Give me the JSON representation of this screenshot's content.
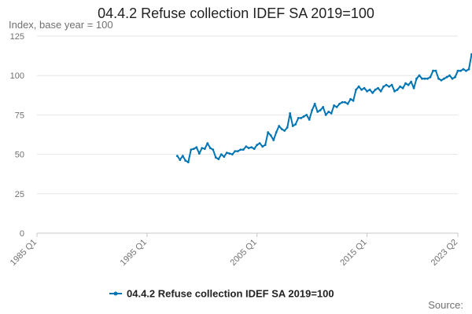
{
  "chart_data": {
    "type": "line",
    "title": "04.4.2 Refuse collection IDEF SA 2019=100",
    "ylabel": "Index, base year = 100",
    "xlabel": "",
    "ylim": [
      0,
      125
    ],
    "yticks": [
      0,
      25,
      50,
      75,
      100,
      125
    ],
    "x_ticks": [
      "1985 Q1",
      "1995 Q1",
      "2005 Q1",
      "2015 Q1",
      "2023 Q2"
    ],
    "legend_position": "bottom",
    "grid": true,
    "color": "#0075b4",
    "series": [
      {
        "name": "04.4.2 Refuse collection IDEF SA 2019=100",
        "points": [
          [
            "1997 Q4",
            49
          ],
          [
            "1998 Q1",
            46.5
          ],
          [
            "1998 Q2",
            49
          ],
          [
            "1998 Q3",
            46
          ],
          [
            "1998 Q4",
            45
          ],
          [
            "1999 Q1",
            53
          ],
          [
            "1999 Q2",
            53.5
          ],
          [
            "1999 Q3",
            54.5
          ],
          [
            "1999 Q4",
            50.5
          ],
          [
            "2000 Q1",
            54
          ],
          [
            "2000 Q2",
            53.5
          ],
          [
            "2000 Q3",
            57
          ],
          [
            "2000 Q4",
            54
          ],
          [
            "2001 Q1",
            53
          ],
          [
            "2001 Q2",
            48
          ],
          [
            "2001 Q3",
            47
          ],
          [
            "2001 Q4",
            50
          ],
          [
            "2002 Q1",
            48.5
          ],
          [
            "2002 Q2",
            51
          ],
          [
            "2002 Q3",
            50.5
          ],
          [
            "2002 Q4",
            50
          ],
          [
            "2003 Q1",
            52
          ],
          [
            "2003 Q2",
            52
          ],
          [
            "2003 Q3",
            53
          ],
          [
            "2003 Q4",
            53
          ],
          [
            "2004 Q1",
            55
          ],
          [
            "2004 Q2",
            54
          ],
          [
            "2004 Q3",
            54.5
          ],
          [
            "2004 Q4",
            53.5
          ],
          [
            "2005 Q1",
            56
          ],
          [
            "2005 Q2",
            57
          ],
          [
            "2005 Q3",
            55
          ],
          [
            "2005 Q4",
            56
          ],
          [
            "2006 Q1",
            64
          ],
          [
            "2006 Q2",
            62
          ],
          [
            "2006 Q3",
            59
          ],
          [
            "2006 Q4",
            64
          ],
          [
            "2007 Q1",
            68
          ],
          [
            "2007 Q2",
            66
          ],
          [
            "2007 Q3",
            65
          ],
          [
            "2007 Q4",
            67
          ],
          [
            "2008 Q1",
            76
          ],
          [
            "2008 Q2",
            68
          ],
          [
            "2008 Q3",
            69
          ],
          [
            "2008 Q4",
            73
          ],
          [
            "2009 Q1",
            73
          ],
          [
            "2009 Q2",
            74
          ],
          [
            "2009 Q3",
            75
          ],
          [
            "2009 Q4",
            72
          ],
          [
            "2010 Q1",
            78
          ],
          [
            "2010 Q2",
            82
          ],
          [
            "2010 Q3",
            77
          ],
          [
            "2010 Q4",
            78
          ],
          [
            "2011 Q1",
            80
          ],
          [
            "2011 Q2",
            75
          ],
          [
            "2011 Q3",
            77
          ],
          [
            "2011 Q4",
            76
          ],
          [
            "2012 Q1",
            81
          ],
          [
            "2012 Q2",
            80
          ],
          [
            "2012 Q3",
            82
          ],
          [
            "2012 Q4",
            83
          ],
          [
            "2013 Q1",
            83
          ],
          [
            "2013 Q2",
            82
          ],
          [
            "2013 Q3",
            85
          ],
          [
            "2013 Q4",
            84
          ],
          [
            "2014 Q1",
            91
          ],
          [
            "2014 Q2",
            93
          ],
          [
            "2014 Q3",
            91
          ],
          [
            "2014 Q4",
            92
          ],
          [
            "2015 Q1",
            90
          ],
          [
            "2015 Q2",
            91
          ],
          [
            "2015 Q3",
            89
          ],
          [
            "2015 Q4",
            91
          ],
          [
            "2016 Q1",
            92
          ],
          [
            "2016 Q2",
            90
          ],
          [
            "2016 Q3",
            93
          ],
          [
            "2016 Q4",
            94
          ],
          [
            "2017 Q1",
            93
          ],
          [
            "2017 Q2",
            94
          ],
          [
            "2017 Q3",
            90
          ],
          [
            "2017 Q4",
            91
          ],
          [
            "2018 Q1",
            93
          ],
          [
            "2018 Q2",
            92
          ],
          [
            "2018 Q3",
            95
          ],
          [
            "2018 Q4",
            94
          ],
          [
            "2019 Q1",
            96
          ],
          [
            "2019 Q2",
            92
          ],
          [
            "2019 Q3",
            98
          ],
          [
            "2019 Q4",
            100
          ],
          [
            "2020 Q1",
            98
          ],
          [
            "2020 Q2",
            98
          ],
          [
            "2020 Q3",
            98
          ],
          [
            "2020 Q4",
            99
          ],
          [
            "2021 Q1",
            103
          ],
          [
            "2021 Q2",
            103
          ],
          [
            "2021 Q3",
            98
          ],
          [
            "2021 Q4",
            97
          ],
          [
            "2022 Q1",
            98
          ],
          [
            "2022 Q2",
            99
          ],
          [
            "2022 Q3",
            100
          ],
          [
            "2022 Q4",
            98
          ],
          [
            "2023 Q1",
            99
          ],
          [
            "2023 Q2",
            103
          ],
          [
            "2023 Q3",
            103
          ],
          [
            "2023 Q4",
            104
          ],
          [
            "2024 Q1",
            103
          ],
          [
            "2024 Q2",
            104
          ],
          [
            "2024 Q3",
            113.5
          ]
        ]
      }
    ]
  },
  "footer": {
    "source_label": "Source:"
  }
}
